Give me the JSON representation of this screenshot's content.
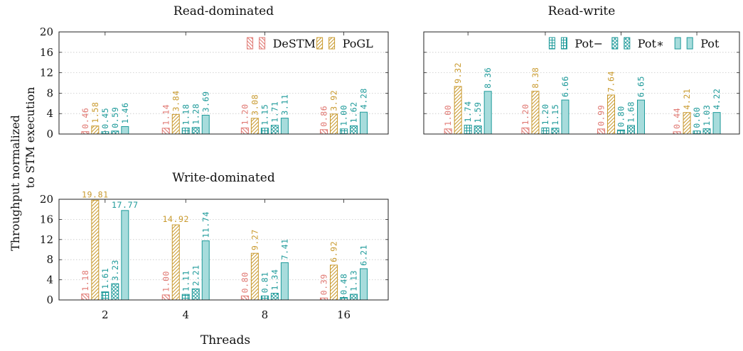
{
  "figure": {
    "ylabel_line1": "Throughput normalized",
    "ylabel_line2": "to STM execution",
    "xlabel": "Threads"
  },
  "series_styles": [
    {
      "name": "DeSTM",
      "color": "#e07872",
      "pattern": "diag-back"
    },
    {
      "name": "PoGL",
      "color": "#c99a2e",
      "pattern": "diag-forward"
    },
    {
      "name": "Pot−",
      "color": "#1e9a9a",
      "pattern": "grid"
    },
    {
      "name": "Pot∗",
      "color": "#1e9a9a",
      "pattern": "crosshatch"
    },
    {
      "name": "Pot",
      "color": "#1e9a9a",
      "pattern": "solid"
    }
  ],
  "chart_data": [
    {
      "type": "bar",
      "title": "Read-dominated",
      "categories": [
        "2",
        "4",
        "8",
        "16"
      ],
      "ylim": [
        0,
        20
      ],
      "yticks": [
        0,
        4,
        8,
        12,
        16,
        20
      ],
      "grid": true,
      "legend": {
        "placement": "top-right",
        "entries": [
          "DeSTM",
          "PoGL"
        ]
      },
      "series": [
        {
          "name": "DeSTM",
          "values": [
            0.46,
            1.14,
            1.2,
            0.86
          ],
          "labels": [
            "0.46",
            "1.14",
            "1.20",
            "0.86"
          ]
        },
        {
          "name": "PoGL",
          "values": [
            1.58,
            3.84,
            3.08,
            3.92
          ],
          "labels": [
            "1.58",
            "3.84",
            "3.08",
            "3.92"
          ]
        },
        {
          "name": "Pot−",
          "values": [
            0.45,
            1.18,
            1.15,
            1.0
          ],
          "labels": [
            "0.45",
            "1.18",
            "1.15",
            "1.00"
          ]
        },
        {
          "name": "Pot∗",
          "values": [
            0.59,
            1.28,
            1.71,
            1.62
          ],
          "labels": [
            "0.59",
            "1.28",
            "1.71",
            "1.62"
          ]
        },
        {
          "name": "Pot",
          "values": [
            1.46,
            3.69,
            3.11,
            4.28
          ],
          "labels": [
            "1.46",
            "3.69",
            "3.11",
            "4.28"
          ]
        }
      ]
    },
    {
      "type": "bar",
      "title": "Read-write",
      "categories": [
        "2",
        "4",
        "8",
        "16"
      ],
      "ylim": [
        0,
        20
      ],
      "yticks": [
        0,
        4,
        8,
        12,
        16,
        20
      ],
      "grid": true,
      "legend": {
        "placement": "top-right",
        "entries": [
          "Pot−",
          "Pot∗",
          "Pot"
        ]
      },
      "series": [
        {
          "name": "DeSTM",
          "values": [
            1.0,
            1.2,
            0.99,
            0.44
          ],
          "labels": [
            "1.00",
            "1.20",
            "0.99",
            "0.44"
          ]
        },
        {
          "name": "PoGL",
          "values": [
            9.32,
            8.38,
            7.64,
            4.21
          ],
          "labels": [
            "9.32",
            "8.38",
            "7.64",
            "4.21"
          ]
        },
        {
          "name": "Pot−",
          "values": [
            1.74,
            1.2,
            0.8,
            0.6
          ],
          "labels": [
            "1.74",
            "1.20",
            "0.80",
            "0.60"
          ]
        },
        {
          "name": "Pot∗",
          "values": [
            1.59,
            1.15,
            1.68,
            1.03
          ],
          "labels": [
            "1.59",
            "1.15",
            "1.68",
            "1.03"
          ]
        },
        {
          "name": "Pot",
          "values": [
            8.36,
            6.66,
            6.65,
            4.22
          ],
          "labels": [
            "8.36",
            "6.66",
            "6.65",
            "4.22"
          ]
        }
      ]
    },
    {
      "type": "bar",
      "title": "Write-dominated",
      "categories": [
        "2",
        "4",
        "8",
        "16"
      ],
      "ylim": [
        0,
        20
      ],
      "yticks": [
        0,
        4,
        8,
        12,
        16,
        20
      ],
      "grid": true,
      "legend": null,
      "series": [
        {
          "name": "DeSTM",
          "values": [
            1.18,
            1.0,
            0.8,
            0.39
          ],
          "labels": [
            "1.18",
            "1.00",
            "0.80",
            "0.39"
          ]
        },
        {
          "name": "PoGL",
          "values": [
            19.81,
            14.92,
            9.27,
            6.92
          ],
          "labels": [
            "19.81",
            "14.92",
            "9.27",
            "6.92"
          ]
        },
        {
          "name": "Pot−",
          "values": [
            1.61,
            1.11,
            0.81,
            0.48
          ],
          "labels": [
            "1.61",
            "1.11",
            "0.81",
            "0.48"
          ]
        },
        {
          "name": "Pot∗",
          "values": [
            3.23,
            2.21,
            1.34,
            1.13
          ],
          "labels": [
            "3.23",
            "2.21",
            "1.34",
            "1.13"
          ]
        },
        {
          "name": "Pot",
          "values": [
            17.77,
            11.74,
            7.41,
            6.21
          ],
          "labels": [
            "17.77",
            "11.74",
            "7.41",
            "6.21"
          ]
        }
      ]
    }
  ]
}
